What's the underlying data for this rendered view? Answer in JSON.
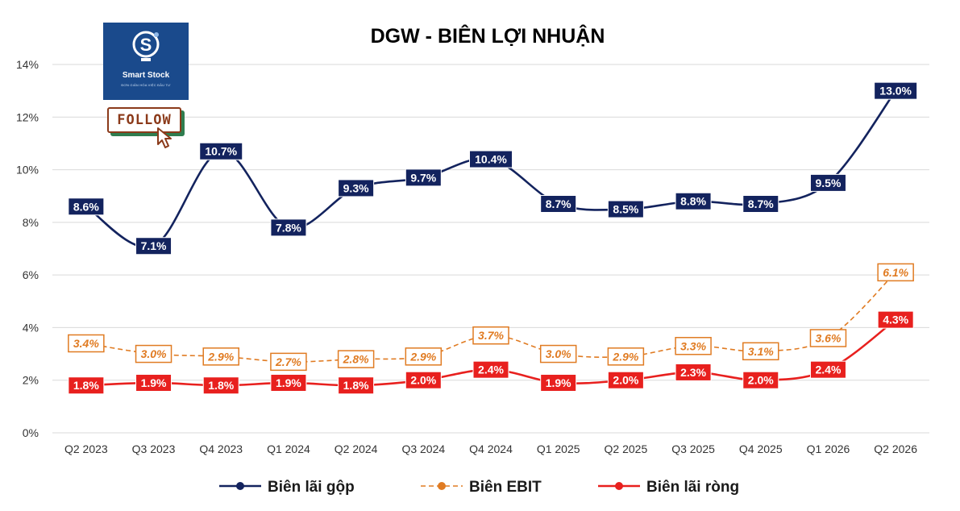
{
  "logo": {
    "name": "Smart Stock",
    "tagline": "ĐƠN GIẢN HÓA VIỆC ĐẦU TƯ",
    "follow_label": "FOLLOW"
  },
  "colors": {
    "gross": "#13235e",
    "ebit": "#e07b22",
    "net": "#e8201e",
    "grid": "#d9d9d9",
    "logo_bg": "#1a4a8c"
  },
  "chart_data": {
    "type": "line",
    "title": "DGW - BIÊN LỢI NHUẬN",
    "categories": [
      "Q2 2023",
      "Q3 2023",
      "Q4 2023",
      "Q1 2024",
      "Q2 2024",
      "Q3 2024",
      "Q4 2024",
      "Q1 2025",
      "Q2 2025",
      "Q3 2025",
      "Q4 2025",
      "Q1 2026",
      "Q2 2026"
    ],
    "ylim": [
      0,
      14
    ],
    "yticks": [
      "0%",
      "2%",
      "4%",
      "6%",
      "8%",
      "10%",
      "12%",
      "14%"
    ],
    "grid": true,
    "legend_position": "bottom",
    "series": [
      {
        "name": "Biên lãi gộp",
        "style": "solid",
        "values": [
          8.6,
          7.1,
          10.7,
          7.8,
          9.3,
          9.7,
          10.4,
          8.7,
          8.5,
          8.8,
          8.7,
          9.5,
          13.0
        ],
        "labels": [
          "8.6%",
          "7.1%",
          "10.7%",
          "7.8%",
          "9.3%",
          "9.7%",
          "10.4%",
          "8.7%",
          "8.5%",
          "8.8%",
          "8.7%",
          "9.5%",
          "13.0%"
        ]
      },
      {
        "name": "Biên EBIT",
        "style": "dashed",
        "values": [
          3.4,
          3.0,
          2.9,
          2.7,
          2.8,
          2.9,
          3.7,
          3.0,
          2.9,
          3.3,
          3.1,
          3.6,
          6.1
        ],
        "labels": [
          "3.4%",
          "3.0%",
          "2.9%",
          "2.7%",
          "2.8%",
          "2.9%",
          "3.7%",
          "3.0%",
          "2.9%",
          "3.3%",
          "3.1%",
          "3.6%",
          "6.1%"
        ]
      },
      {
        "name": "Biên lãi ròng",
        "style": "solid",
        "values": [
          1.8,
          1.9,
          1.8,
          1.9,
          1.8,
          2.0,
          2.4,
          1.9,
          2.0,
          2.3,
          2.0,
          2.4,
          4.3
        ],
        "labels": [
          "1.8%",
          "1.9%",
          "1.8%",
          "1.9%",
          "1.8%",
          "2.0%",
          "2.4%",
          "1.9%",
          "2.0%",
          "2.3%",
          "2.0%",
          "2.4%",
          "4.3%"
        ]
      }
    ]
  }
}
